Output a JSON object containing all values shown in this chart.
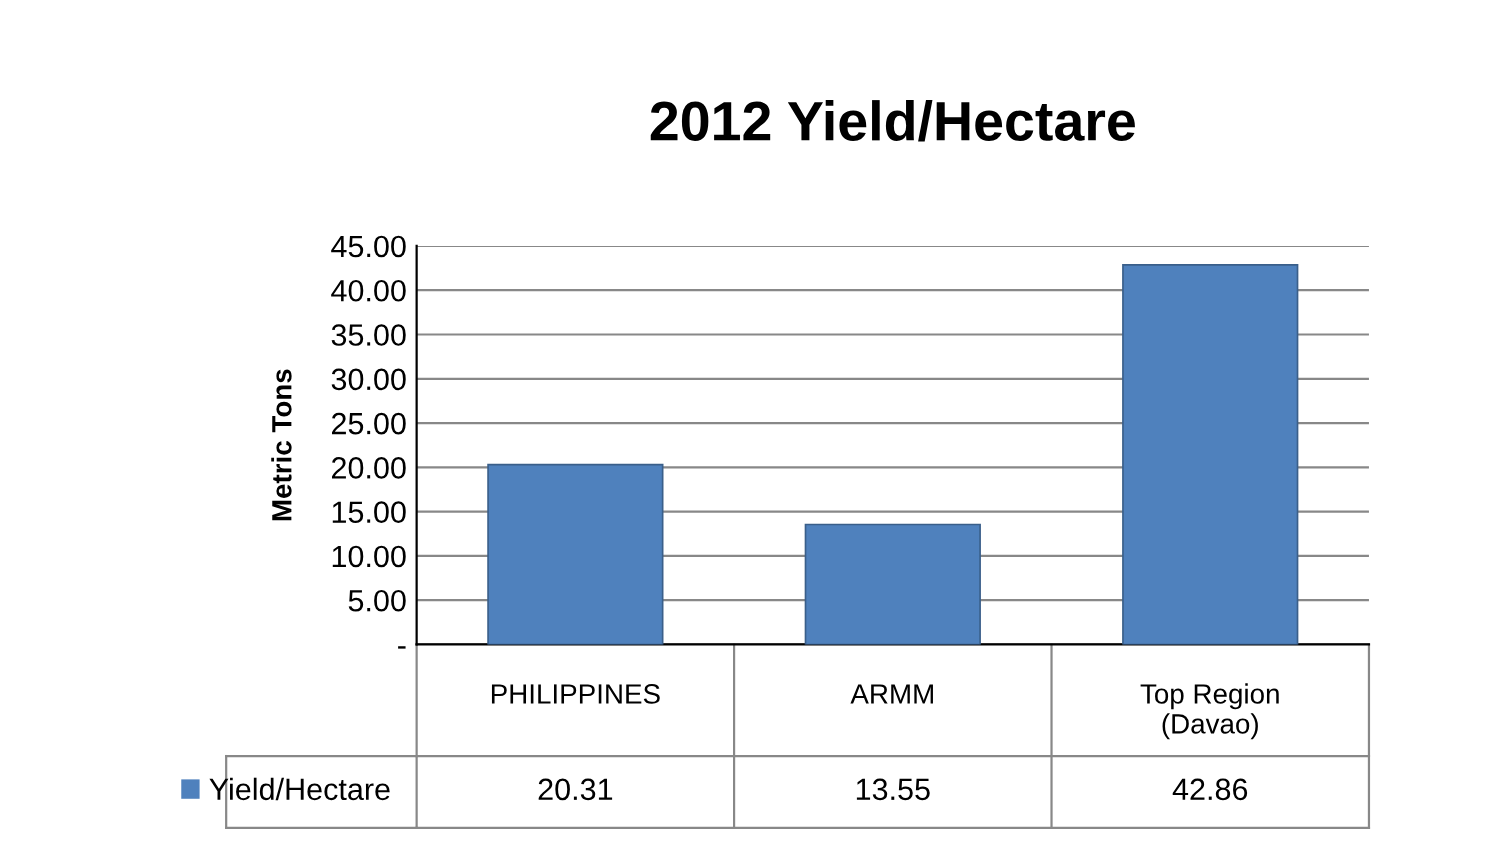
{
  "chart_data": {
    "type": "bar",
    "title": "2012 Yield/Hectare",
    "ylabel": "Metric Tons",
    "categories": [
      "PHILIPPINES",
      "ARMM",
      "Top Region\n(Davao)"
    ],
    "series": [
      {
        "name": "Yield/Hectare",
        "color": "#4f81bd",
        "values": [
          20.31,
          13.55,
          42.86
        ]
      }
    ],
    "ylim": [
      0,
      45
    ],
    "yticks": [
      {
        "value": 0,
        "label": "-"
      },
      {
        "value": 5,
        "label": "5.00"
      },
      {
        "value": 10,
        "label": "10.00"
      },
      {
        "value": 15,
        "label": "15.00"
      },
      {
        "value": 20,
        "label": "20.00"
      },
      {
        "value": 25,
        "label": "25.00"
      },
      {
        "value": 30,
        "label": "30.00"
      },
      {
        "value": 35,
        "label": "35.00"
      },
      {
        "value": 40,
        "label": "40.00"
      },
      {
        "value": 45,
        "label": "45.00"
      }
    ],
    "grid": "y",
    "legend": "bottom left",
    "data_labels": true
  }
}
